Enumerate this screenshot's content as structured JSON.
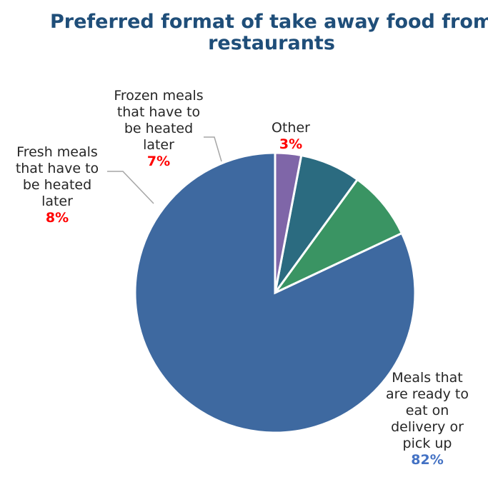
{
  "chart_data": {
    "type": "pie",
    "title_lines": [
      "Preferred format of take away food from",
      "restaurants"
    ],
    "slices": [
      {
        "label_lines": [
          "Meals that",
          "are ready to",
          "eat on",
          "delivery or",
          "pick up"
        ],
        "value": 82,
        "value_label": "82%",
        "color": "#3e69a0",
        "value_color": "#4472c4"
      },
      {
        "label_lines": [
          "Fresh meals",
          "that have to",
          "be heated",
          "later"
        ],
        "value": 8,
        "value_label": "8%",
        "color": "#3a9463",
        "value_color": "#ff0000"
      },
      {
        "label_lines": [
          "Frozen meals",
          "that have to",
          "be heated",
          "later"
        ],
        "value": 7,
        "value_label": "7%",
        "color": "#2b6b80",
        "value_color": "#ff0000"
      },
      {
        "label_lines": [
          "Other"
        ],
        "value": 3,
        "value_label": "3%",
        "color": "#7f66a8",
        "value_color": "#ff0000"
      }
    ],
    "start_angle_deg": 0,
    "direction": "counterclockwise",
    "leader_line_color": "#a6a6a6"
  }
}
